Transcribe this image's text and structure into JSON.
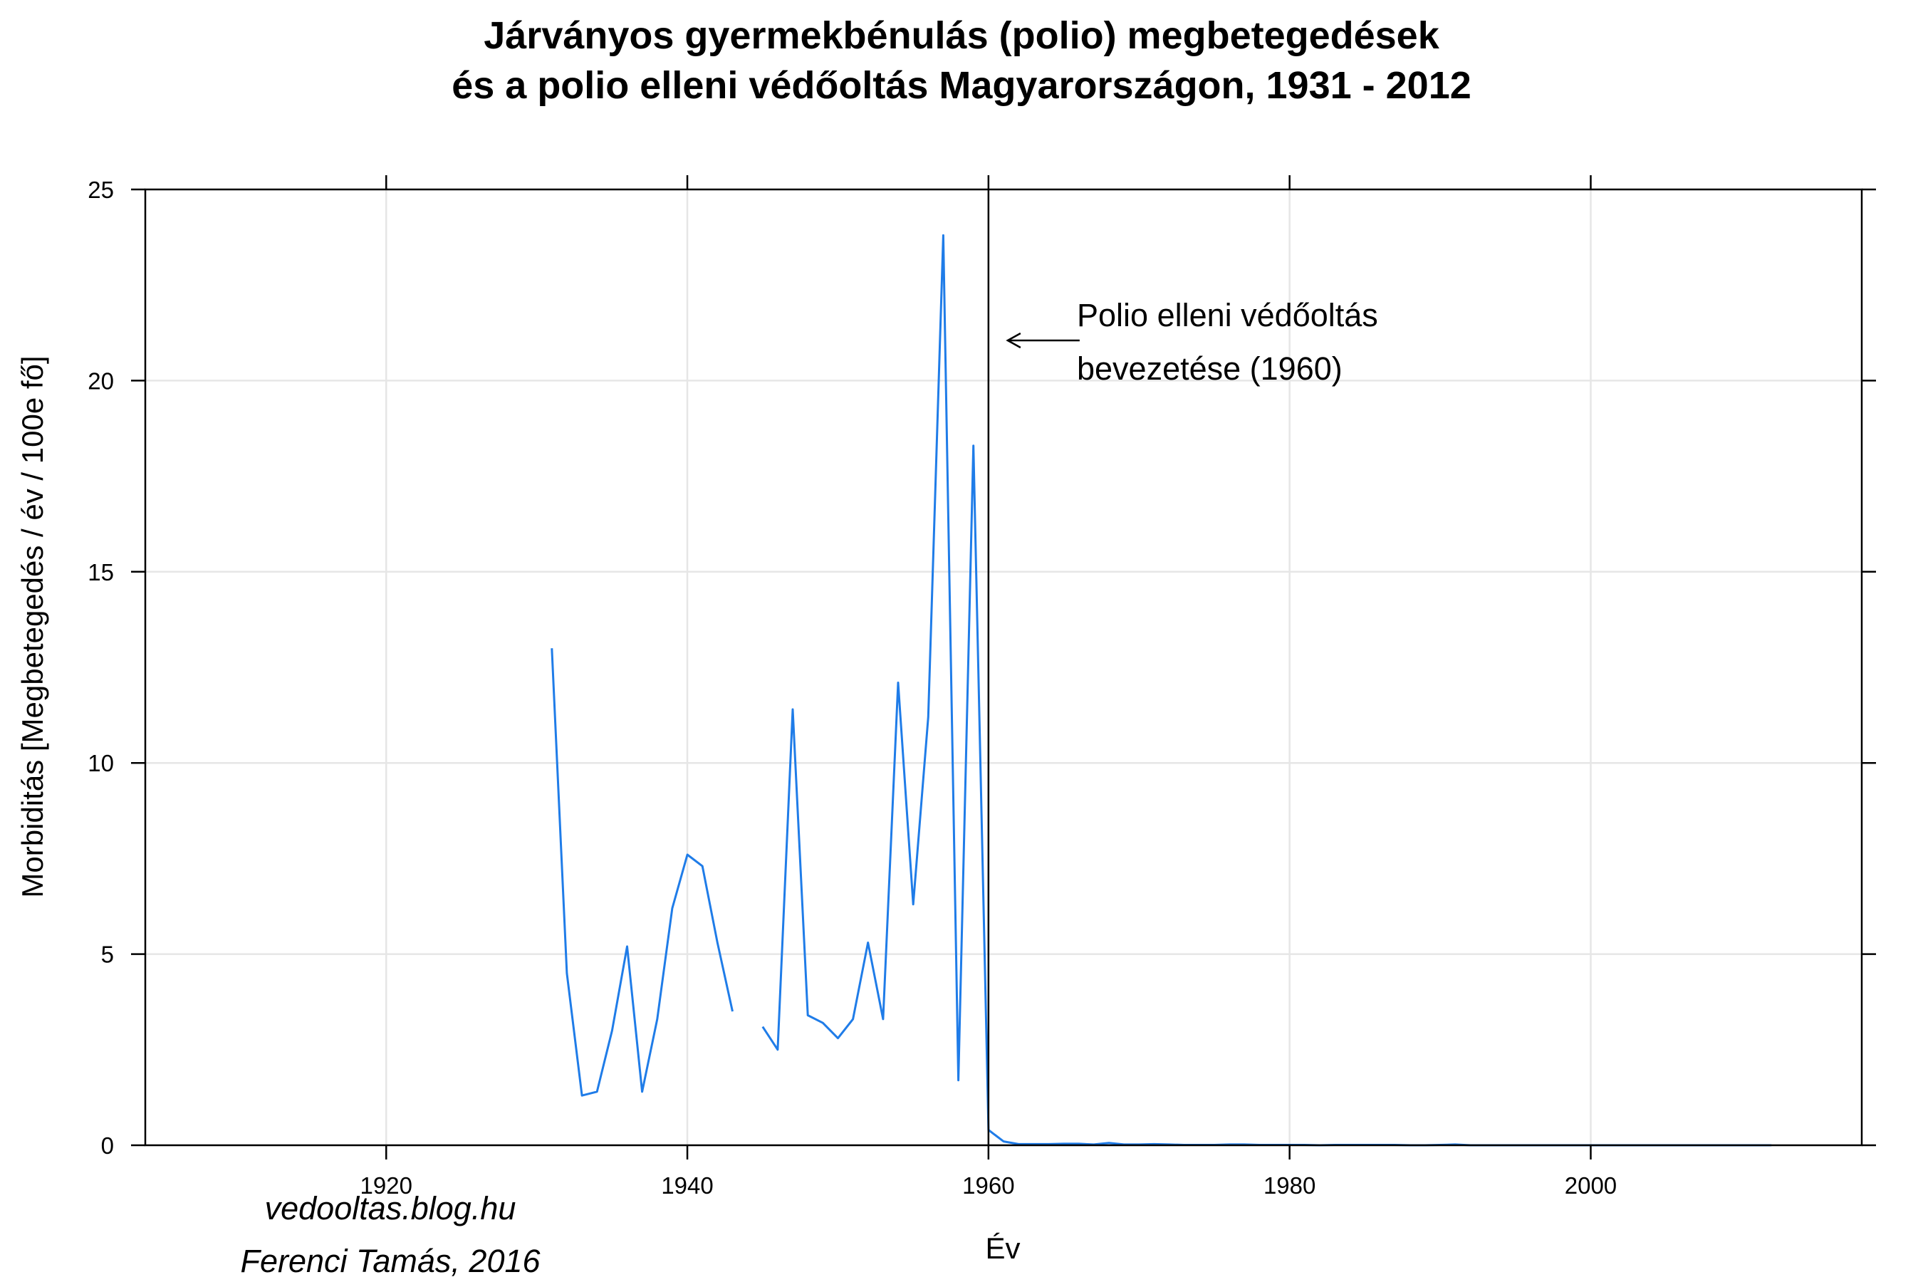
{
  "chart_data": {
    "type": "line",
    "title_lines": [
      "Járványos gyermekbénulás (polio) megbetegedések",
      "és a polio elleni védőoltás Magyarországon, 1931 - 2012"
    ],
    "xlabel": "Év",
    "ylabel": "Morbiditás [Megbetegedés / év / 100e fő]",
    "xlim": [
      1904,
      2018
    ],
    "ylim": [
      0,
      25
    ],
    "x_ticks": [
      1920,
      1940,
      1960,
      1980,
      2000
    ],
    "y_ticks": [
      0,
      5,
      10,
      15,
      20,
      25
    ],
    "grid": true,
    "series_color": "#1f7ce8",
    "series": [
      {
        "segments": [
          {
            "x": [
              1931,
              1932,
              1933,
              1934,
              1935,
              1936,
              1937,
              1938,
              1939,
              1940,
              1941,
              1942,
              1943
            ],
            "y": [
              13.0,
              4.5,
              1.3,
              1.4,
              3.0,
              5.2,
              1.4,
              3.3,
              6.2,
              7.6,
              7.3,
              5.3,
              3.5
            ]
          },
          {
            "x": [
              1945,
              1946,
              1947,
              1948,
              1949,
              1950,
              1951,
              1952,
              1953,
              1954,
              1955,
              1956,
              1957,
              1958,
              1959,
              1960,
              1961,
              1962,
              1963,
              1964,
              1965,
              1966,
              1967,
              1968,
              1969,
              1970,
              1971,
              1972,
              1973,
              1974,
              1975,
              1976,
              1977,
              1978,
              1979,
              1980,
              1981,
              1982,
              1983,
              1984,
              1985,
              1986,
              1987,
              1988,
              1989,
              1990,
              1991,
              1992,
              1993,
              1994,
              1995,
              1996,
              1997,
              1998,
              1999,
              2000,
              2001,
              2002,
              2003,
              2004,
              2005,
              2006,
              2007,
              2008,
              2009,
              2010,
              2011,
              2012
            ],
            "y": [
              3.1,
              2.5,
              11.4,
              3.4,
              3.2,
              2.8,
              3.3,
              5.3,
              3.3,
              12.1,
              6.3,
              11.2,
              23.8,
              1.7,
              18.3,
              0.4,
              0.1,
              0.03,
              0.03,
              0.03,
              0.04,
              0.04,
              0.02,
              0.06,
              0.02,
              0.02,
              0.03,
              0.02,
              0.01,
              0.01,
              0.01,
              0.02,
              0.02,
              0.01,
              0.01,
              0.01,
              0.01,
              0.0,
              0.01,
              0.01,
              0.01,
              0.01,
              0.01,
              0.0,
              0.0,
              0.01,
              0.02,
              0.0,
              0.0,
              0.0,
              0.0,
              0.0,
              0.0,
              0.0,
              0.0,
              0.0,
              0.0,
              0.0,
              0.0,
              0.0,
              0.0,
              0.0,
              0.0,
              0.0,
              0.0,
              0.0,
              0.0,
              0.0
            ]
          }
        ]
      }
    ],
    "vline": {
      "x": 1960
    },
    "annotation": {
      "lines": [
        "Polio elleni védőoltás",
        "bevezetése (1960)"
      ],
      "arrow_glyph": "←"
    }
  },
  "credits": {
    "line1": "vedooltas.blog.hu",
    "line2": "Ferenci Tamás, 2016"
  }
}
